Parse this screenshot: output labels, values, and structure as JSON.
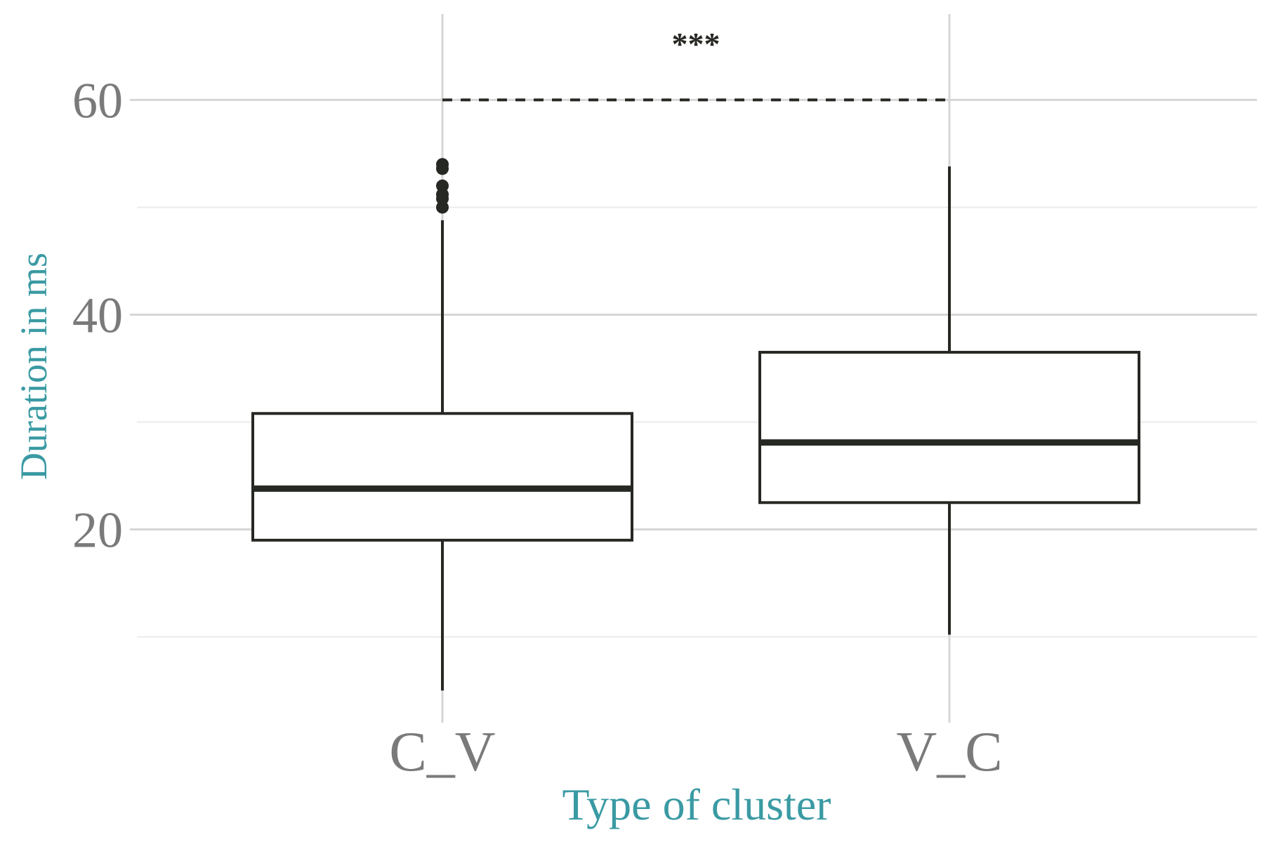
{
  "chart_data": {
    "type": "boxplot",
    "categories": [
      "C_V",
      "V_C"
    ],
    "boxes": [
      {
        "category": "C_V",
        "min": 5,
        "q1": 19.0,
        "median": 23.8,
        "q3": 30.8,
        "max": 48.8,
        "outliers": [
          50.0,
          50.8,
          51.2,
          52.0,
          53.6,
          54.0
        ]
      },
      {
        "category": "V_C",
        "min": 10.2,
        "q1": 22.5,
        "median": 28.1,
        "q3": 36.5,
        "max": 53.8,
        "outliers": []
      }
    ],
    "significance": {
      "label": "***",
      "from": "C_V",
      "to": "V_C",
      "y": 60
    },
    "xlabel": "Type of cluster",
    "ylabel": "Duration in ms",
    "yticks": [
      20,
      40,
      60
    ],
    "ylim": [
      2,
      68
    ],
    "grid": true,
    "colors": {
      "axis_title": "#3a9aa3",
      "tick_label": "#7a7a7a",
      "box_stroke": "#262823",
      "grid_major": "#d6d6d6",
      "grid_minor": "#ebebeb"
    }
  }
}
